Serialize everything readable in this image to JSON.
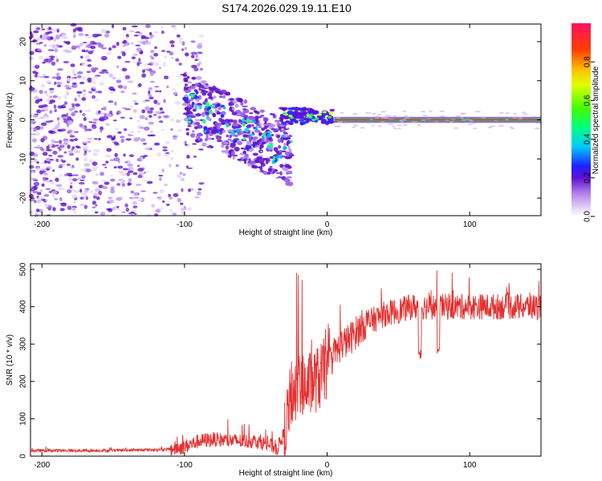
{
  "title": "S174.2026.029.19.11.E10",
  "colors": {
    "snr_line": "#e53030",
    "carrier": "#ff2020",
    "speckle_light": "#c8a8f0",
    "speckle_dark": "#6010d0"
  },
  "chart_data": [
    {
      "type": "heatmap",
      "name": "spectrogram",
      "xlabel": "Height of straight line (km)",
      "ylabel": "Frequency (Hz)",
      "xlim": [
        -208,
        150
      ],
      "ylim": [
        -24.5,
        24.5
      ],
      "xticks": [
        -200,
        -100,
        0,
        100
      ],
      "yticks": [
        -20,
        -10,
        0,
        10,
        20
      ],
      "colorbar": {
        "label": "Normalized spectral amplitude",
        "range": [
          0,
          1
        ],
        "ticks": [
          0.0,
          0.2,
          0.4,
          0.6,
          0.8
        ]
      },
      "description_series": {
        "carrier_freq_hz": 0,
        "carrier_start_km": 5,
        "noise_region_km": [
          -208,
          -90
        ],
        "band_region_km": [
          -100,
          -25
        ]
      }
    },
    {
      "type": "line",
      "name": "snr",
      "xlabel": "Height of straight line (km)",
      "ylabel": "SNR (10 * v/v)",
      "xlim": [
        -208,
        150
      ],
      "ylim": [
        0,
        515
      ],
      "xticks": [
        -200,
        -100,
        0,
        100
      ],
      "yticks": [
        0,
        100,
        200,
        300,
        400,
        500
      ],
      "envelope": {
        "x": [
          -208,
          -150,
          -110,
          -100,
          -90,
          -80,
          -70,
          -60,
          -50,
          -40,
          -35,
          -30,
          -25,
          -20,
          -15,
          -10,
          -5,
          0,
          5,
          10,
          15,
          20,
          25,
          30,
          40,
          50,
          60,
          80,
          100,
          120,
          150
        ],
        "y": [
          15,
          15,
          18,
          25,
          40,
          45,
          42,
          40,
          40,
          30,
          20,
          60,
          170,
          180,
          180,
          200,
          210,
          240,
          270,
          300,
          310,
          330,
          350,
          360,
          380,
          390,
          400,
          400,
          400,
          400,
          400
        ]
      },
      "dips": [
        {
          "x": 65,
          "y": 255
        },
        {
          "x": 78,
          "y": 275
        }
      ]
    }
  ]
}
